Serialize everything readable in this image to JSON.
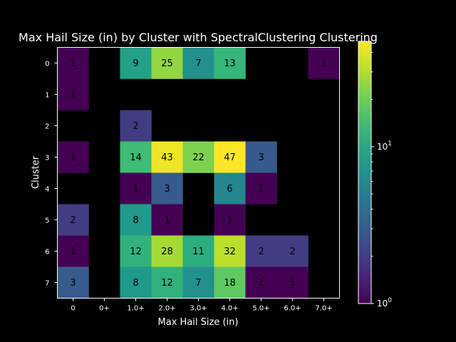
{
  "chart_data": {
    "type": "heatmap",
    "title": "Max Hail Size (in) by Cluster with SpectralClustering Clustering",
    "xlabel": "Max Hail Size (in)",
    "ylabel": "Cluster",
    "x_categories": [
      "0",
      "0+",
      "1.0+",
      "2.0+",
      "3.0+",
      "4.0+",
      "5.0+",
      "6.0+",
      "7.0+"
    ],
    "y_categories": [
      "0",
      "1",
      "2",
      "3",
      "4",
      "5",
      "6",
      "7"
    ],
    "values": [
      [
        1,
        null,
        9,
        25,
        7,
        13,
        null,
        null,
        1
      ],
      [
        1,
        null,
        null,
        null,
        null,
        null,
        null,
        null,
        null
      ],
      [
        null,
        null,
        2,
        null,
        null,
        null,
        null,
        null,
        null
      ],
      [
        1,
        null,
        14,
        43,
        22,
        47,
        3,
        null,
        null
      ],
      [
        null,
        null,
        1,
        3,
        null,
        6,
        1,
        null,
        null
      ],
      [
        2,
        null,
        8,
        1,
        null,
        1,
        null,
        null,
        null
      ],
      [
        1,
        null,
        12,
        28,
        11,
        32,
        2,
        2,
        null
      ],
      [
        3,
        null,
        8,
        12,
        7,
        18,
        1,
        1,
        null
      ]
    ],
    "colorscale": "viridis",
    "color_scale_type": "log",
    "color_range": [
      1,
      47
    ],
    "colorbar_ticks": [
      "10^0",
      "10^1"
    ],
    "grid": false,
    "missing_color": "#000000"
  }
}
